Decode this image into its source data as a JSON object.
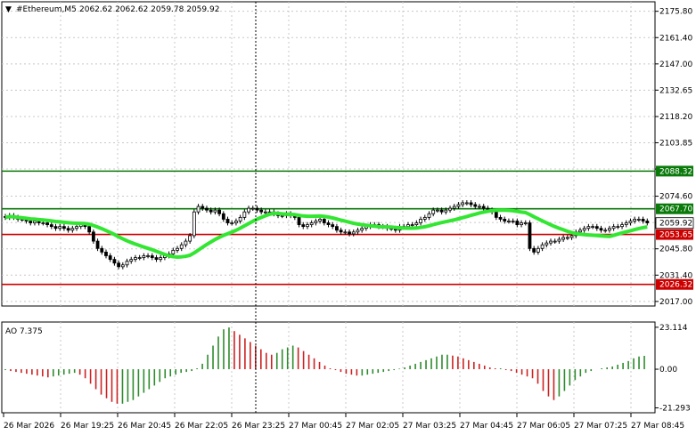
{
  "header": {
    "symbol": "#Ethereum,M5",
    "ohlc": "2062.62 2062.62 2059.78 2059.92"
  },
  "colors": {
    "ma_line": "#32e632",
    "support_line": "#cc0000",
    "resistance_line": "#0a7a0a",
    "candle": "#000000",
    "ao_up": "#2e8b2e",
    "ao_down": "#cc2222",
    "grid": "#c8c8c8",
    "current_price_bg": "#ffffff"
  },
  "price_axis": {
    "ticks": [
      "2175.80",
      "2161.40",
      "2147.00",
      "2132.65",
      "2118.20",
      "2103.85",
      "2089.45",
      "2074.60",
      "2060.20",
      "2045.80",
      "2031.40",
      "2017.00"
    ],
    "tick_values": [
      2175.8,
      2161.4,
      2147.0,
      2132.65,
      2118.2,
      2103.85,
      2089.45,
      2074.6,
      2060.2,
      2045.8,
      2031.4,
      2017.0
    ],
    "range": [
      2014.5,
      2181.0
    ]
  },
  "levels": [
    {
      "label": "2088.32",
      "value": 2088.32,
      "kind": "resistance"
    },
    {
      "label": "2067.70",
      "value": 2067.7,
      "kind": "resistance"
    },
    {
      "label": "2053.65",
      "value": 2053.65,
      "kind": "support"
    },
    {
      "label": "2026.32",
      "value": 2026.32,
      "kind": "support"
    }
  ],
  "current_price": {
    "label": "2059.92",
    "value": 2059.92
  },
  "oscillator": {
    "title": "AO 7.375",
    "ticks": [
      "23.114",
      "0.00",
      "-21.293"
    ],
    "tick_values": [
      23.114,
      0.0,
      -21.293
    ]
  },
  "time_axis": {
    "labels": [
      "26 Mar 2026",
      "26 Mar 19:25",
      "26 Mar 20:45",
      "26 Mar 22:05",
      "26 Mar 23:25",
      "27 Mar 00:45",
      "27 Mar 02:05",
      "27 Mar 03:25",
      "27 Mar 04:45",
      "27 Mar 06:05",
      "27 Mar 07:25",
      "27 Mar 08:45"
    ]
  },
  "chart_data": {
    "type": "candlestick",
    "symbol": "#Ethereum,M5",
    "closes": [
      2063,
      2064,
      2063,
      2062,
      2062,
      2061,
      2060,
      2061,
      2060,
      2060,
      2059,
      2058,
      2057,
      2058,
      2057,
      2056,
      2057,
      2058,
      2059,
      2058,
      2055,
      2050,
      2046,
      2044,
      2042,
      2040,
      2038,
      2036,
      2037,
      2039,
      2040,
      2041,
      2041,
      2042,
      2042,
      2041,
      2040,
      2041,
      2042,
      2043,
      2045,
      2046,
      2048,
      2050,
      2053,
      2066,
      2069,
      2068,
      2067,
      2066,
      2067,
      2065,
      2062,
      2060,
      2060,
      2061,
      2063,
      2066,
      2068,
      2068,
      2067,
      2066,
      2066,
      2066,
      2065,
      2064,
      2064,
      2065,
      2064,
      2063,
      2059,
      2058,
      2059,
      2060,
      2061,
      2062,
      2060,
      2059,
      2058,
      2056,
      2055,
      2055,
      2054,
      2055,
      2056,
      2057,
      2058,
      2059,
      2059,
      2058,
      2058,
      2057,
      2057,
      2056,
      2058,
      2058,
      2059,
      2059,
      2060,
      2062,
      2063,
      2065,
      2067,
      2067,
      2066,
      2067,
      2068,
      2069,
      2070,
      2071,
      2071,
      2070,
      2069,
      2069,
      2068,
      2067,
      2066,
      2063,
      2062,
      2061,
      2061,
      2061,
      2059,
      2060,
      2060,
      2046,
      2044,
      2046,
      2048,
      2049,
      2050,
      2050,
      2051,
      2052,
      2052,
      2053,
      2055,
      2056,
      2057,
      2058,
      2058,
      2057,
      2056,
      2056,
      2057,
      2058,
      2058,
      2059,
      2060,
      2061,
      2062,
      2062,
      2061,
      2060
    ],
    "ao_values": [
      -0.5,
      -1,
      -1.5,
      -2,
      -2.5,
      -3,
      -3.5,
      -4,
      -4.5,
      -4,
      -3.5,
      -3,
      -2.5,
      -2,
      -3,
      -5,
      -8,
      -11,
      -14,
      -16,
      -18,
      -19,
      -19,
      -18,
      -17,
      -15,
      -13,
      -11,
      -9,
      -7,
      -5,
      -4,
      -3,
      -2,
      -1.5,
      -1,
      0.5,
      3,
      8,
      13,
      18,
      22,
      23,
      21,
      19,
      17,
      15,
      13,
      11,
      9,
      8,
      9,
      11,
      12,
      13,
      12,
      10,
      8,
      6,
      4,
      2,
      0.5,
      -0.5,
      -1.5,
      -2.5,
      -3,
      -3.5,
      -3.5,
      -3,
      -2.5,
      -2,
      -1.5,
      -1,
      -0.5,
      0.3,
      1,
      2,
      3,
      4,
      5,
      6,
      7,
      8,
      8,
      7.5,
      7,
      6,
      5,
      4,
      3,
      2,
      1,
      0.5,
      0.5,
      -0.5,
      -1,
      -2,
      -3,
      -4,
      -5,
      -8,
      -12,
      -15,
      -17,
      -15,
      -12,
      -9,
      -6,
      -4,
      -2,
      -1,
      0,
      0.5,
      1,
      1.5,
      2.5,
      3.5,
      4.5,
      6,
      7,
      7.375
    ],
    "ma_period_note": "",
    "ylim": [
      2014.5,
      2181.0
    ]
  }
}
